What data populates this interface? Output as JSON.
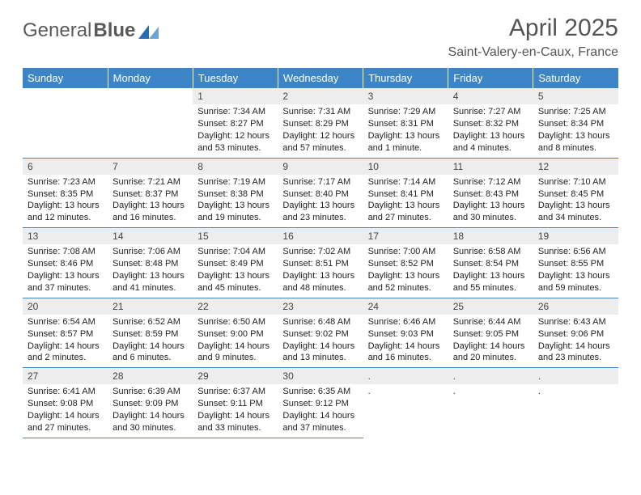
{
  "logo": {
    "text1": "General",
    "text2": "Blue"
  },
  "title": "April 2025",
  "location": "Saint-Valery-en-Caux, France",
  "colors": {
    "headerBg": "#3d85c6",
    "dayNumBg": "#ededed",
    "border": "#3d85c6",
    "logoAccent": "#2a6cb0"
  },
  "weekdays": [
    "Sunday",
    "Monday",
    "Tuesday",
    "Wednesday",
    "Thursday",
    "Friday",
    "Saturday"
  ],
  "startOffset": 2,
  "days": [
    {
      "n": 1,
      "sr": "7:34 AM",
      "ss": "8:27 PM",
      "dl": "12 hours and 53 minutes."
    },
    {
      "n": 2,
      "sr": "7:31 AM",
      "ss": "8:29 PM",
      "dl": "12 hours and 57 minutes."
    },
    {
      "n": 3,
      "sr": "7:29 AM",
      "ss": "8:31 PM",
      "dl": "13 hours and 1 minute."
    },
    {
      "n": 4,
      "sr": "7:27 AM",
      "ss": "8:32 PM",
      "dl": "13 hours and 4 minutes."
    },
    {
      "n": 5,
      "sr": "7:25 AM",
      "ss": "8:34 PM",
      "dl": "13 hours and 8 minutes."
    },
    {
      "n": 6,
      "sr": "7:23 AM",
      "ss": "8:35 PM",
      "dl": "13 hours and 12 minutes."
    },
    {
      "n": 7,
      "sr": "7:21 AM",
      "ss": "8:37 PM",
      "dl": "13 hours and 16 minutes."
    },
    {
      "n": 8,
      "sr": "7:19 AM",
      "ss": "8:38 PM",
      "dl": "13 hours and 19 minutes."
    },
    {
      "n": 9,
      "sr": "7:17 AM",
      "ss": "8:40 PM",
      "dl": "13 hours and 23 minutes."
    },
    {
      "n": 10,
      "sr": "7:14 AM",
      "ss": "8:41 PM",
      "dl": "13 hours and 27 minutes."
    },
    {
      "n": 11,
      "sr": "7:12 AM",
      "ss": "8:43 PM",
      "dl": "13 hours and 30 minutes."
    },
    {
      "n": 12,
      "sr": "7:10 AM",
      "ss": "8:45 PM",
      "dl": "13 hours and 34 minutes."
    },
    {
      "n": 13,
      "sr": "7:08 AM",
      "ss": "8:46 PM",
      "dl": "13 hours and 37 minutes."
    },
    {
      "n": 14,
      "sr": "7:06 AM",
      "ss": "8:48 PM",
      "dl": "13 hours and 41 minutes."
    },
    {
      "n": 15,
      "sr": "7:04 AM",
      "ss": "8:49 PM",
      "dl": "13 hours and 45 minutes."
    },
    {
      "n": 16,
      "sr": "7:02 AM",
      "ss": "8:51 PM",
      "dl": "13 hours and 48 minutes."
    },
    {
      "n": 17,
      "sr": "7:00 AM",
      "ss": "8:52 PM",
      "dl": "13 hours and 52 minutes."
    },
    {
      "n": 18,
      "sr": "6:58 AM",
      "ss": "8:54 PM",
      "dl": "13 hours and 55 minutes."
    },
    {
      "n": 19,
      "sr": "6:56 AM",
      "ss": "8:55 PM",
      "dl": "13 hours and 59 minutes."
    },
    {
      "n": 20,
      "sr": "6:54 AM",
      "ss": "8:57 PM",
      "dl": "14 hours and 2 minutes."
    },
    {
      "n": 21,
      "sr": "6:52 AM",
      "ss": "8:59 PM",
      "dl": "14 hours and 6 minutes."
    },
    {
      "n": 22,
      "sr": "6:50 AM",
      "ss": "9:00 PM",
      "dl": "14 hours and 9 minutes."
    },
    {
      "n": 23,
      "sr": "6:48 AM",
      "ss": "9:02 PM",
      "dl": "14 hours and 13 minutes."
    },
    {
      "n": 24,
      "sr": "6:46 AM",
      "ss": "9:03 PM",
      "dl": "14 hours and 16 minutes."
    },
    {
      "n": 25,
      "sr": "6:44 AM",
      "ss": "9:05 PM",
      "dl": "14 hours and 20 minutes."
    },
    {
      "n": 26,
      "sr": "6:43 AM",
      "ss": "9:06 PM",
      "dl": "14 hours and 23 minutes."
    },
    {
      "n": 27,
      "sr": "6:41 AM",
      "ss": "9:08 PM",
      "dl": "14 hours and 27 minutes."
    },
    {
      "n": 28,
      "sr": "6:39 AM",
      "ss": "9:09 PM",
      "dl": "14 hours and 30 minutes."
    },
    {
      "n": 29,
      "sr": "6:37 AM",
      "ss": "9:11 PM",
      "dl": "14 hours and 33 minutes."
    },
    {
      "n": 30,
      "sr": "6:35 AM",
      "ss": "9:12 PM",
      "dl": "14 hours and 37 minutes."
    }
  ],
  "labels": {
    "sunrise": "Sunrise:",
    "sunset": "Sunset:",
    "daylight": "Daylight:"
  }
}
